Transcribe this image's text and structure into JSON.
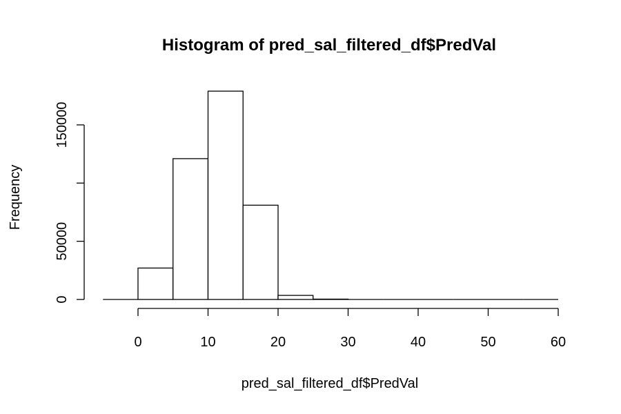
{
  "chart_data": {
    "type": "bar",
    "title": "Histogram of pred_sal_filtered_df$PredVal",
    "xlabel": "pred_sal_filtered_df$PredVal",
    "ylabel": "Frequency",
    "bins": [
      {
        "start": -5,
        "end": 0,
        "value": 0
      },
      {
        "start": 0,
        "end": 5,
        "value": 27000
      },
      {
        "start": 5,
        "end": 10,
        "value": 121000
      },
      {
        "start": 10,
        "end": 15,
        "value": 179000
      },
      {
        "start": 15,
        "end": 20,
        "value": 81000
      },
      {
        "start": 20,
        "end": 25,
        "value": 3500
      },
      {
        "start": 25,
        "end": 30,
        "value": 300
      },
      {
        "start": 30,
        "end": 35,
        "value": 0
      },
      {
        "start": 35,
        "end": 40,
        "value": 0
      },
      {
        "start": 40,
        "end": 45,
        "value": 0
      },
      {
        "start": 45,
        "end": 50,
        "value": 0
      },
      {
        "start": 50,
        "end": 55,
        "value": 0
      },
      {
        "start": 55,
        "end": 60,
        "value": 0
      }
    ],
    "xlim": [
      -5,
      60
    ],
    "ylim": [
      0,
      180000
    ],
    "x_ticks": [
      0,
      10,
      20,
      30,
      40,
      50,
      60
    ],
    "y_ticks": [
      0,
      50000,
      100000,
      150000
    ],
    "y_tick_labels": [
      "0",
      "50000",
      "",
      "150000"
    ],
    "grid": false,
    "legend": "none"
  }
}
